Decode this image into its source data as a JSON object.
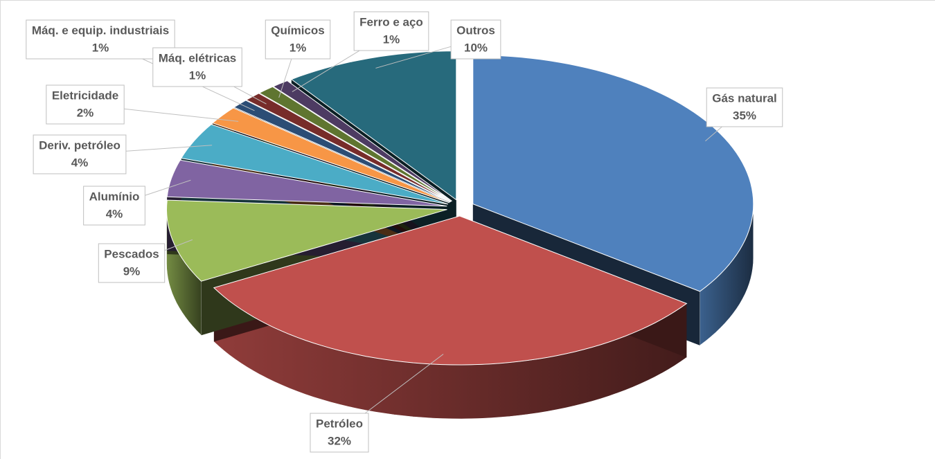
{
  "chart_data": {
    "type": "pie3d",
    "categories": [
      "Gás natural",
      "Petróleo",
      "Pescados",
      "Alumínio",
      "Deriv. petróleo",
      "Eletricidade",
      "Máq. e equip. industriais",
      "Máq. elétricas",
      "Químicos",
      "Ferro e aço",
      "Outros"
    ],
    "values": [
      35,
      32,
      9,
      4,
      4,
      2,
      1,
      1,
      1,
      1,
      10
    ],
    "value_labels": [
      "35%",
      "32%",
      "9%",
      "4%",
      "4%",
      "2%",
      "1%",
      "1%",
      "1%",
      "1%",
      "10%"
    ],
    "colors": [
      "#4f81bd",
      "#c0504d",
      "#9bbb59",
      "#8064a2",
      "#4bacc6",
      "#f79646",
      "#2c4d75",
      "#772c2a",
      "#5f7530",
      "#4d3b62",
      "#276a7c"
    ]
  }
}
